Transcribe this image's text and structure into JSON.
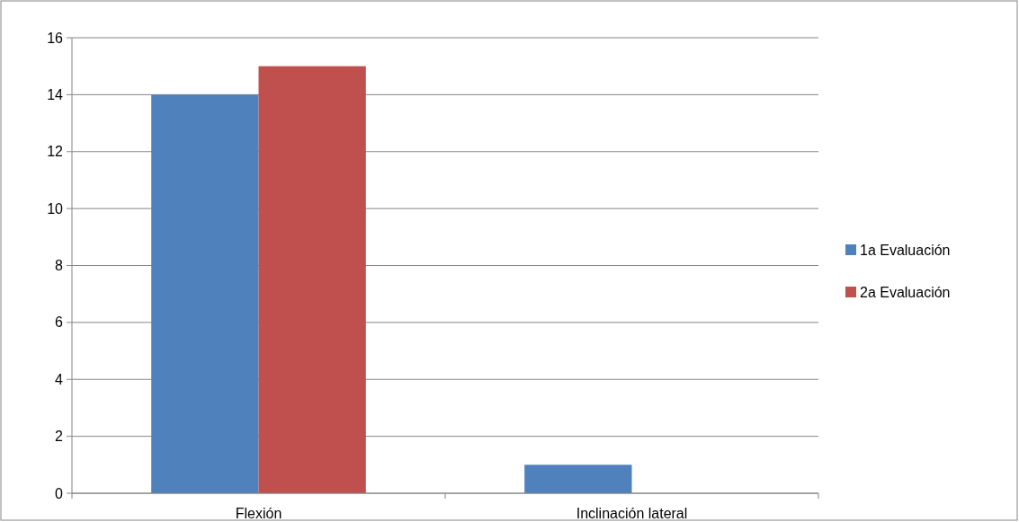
{
  "chart_data": {
    "type": "bar",
    "categories": [
      "Flexión",
      "Inclinación lateral"
    ],
    "series": [
      {
        "name": "1a Evaluación",
        "color": "#4f81bd",
        "values": [
          14,
          1
        ]
      },
      {
        "name": "2a Evaluación",
        "color": "#c0504d",
        "values": [
          15,
          0
        ]
      }
    ],
    "ylim": [
      0,
      16
    ],
    "yticks": [
      0,
      2,
      4,
      6,
      8,
      10,
      12,
      14,
      16
    ],
    "grid": "y",
    "legend": "right"
  }
}
